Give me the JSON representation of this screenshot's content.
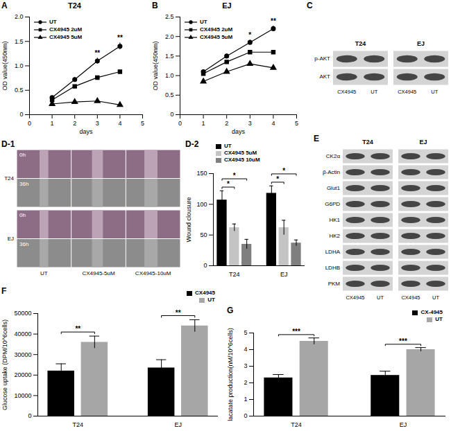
{
  "chart_data": [
    {
      "panel_label": "A",
      "type": "line",
      "title": "T24",
      "x_label": "days",
      "y_label": "OD value(450nm)",
      "xlim": [
        0,
        5
      ],
      "xticks": [
        0,
        1,
        2,
        3,
        4,
        5
      ],
      "ylim": [
        0,
        2
      ],
      "yticks": [
        0,
        0.5,
        {
          "value": 1,
          "label": "1.0"
        },
        1.5,
        {
          "value": 2,
          "label": "2.0"
        }
      ],
      "legend": "top-left",
      "x": [
        1,
        2,
        3,
        4
      ],
      "series": [
        {
          "name": "UT",
          "color": "#000000",
          "marker": "circle",
          "values": [
            0.35,
            0.72,
            1.1,
            1.4
          ],
          "errors": [
            0.03,
            0.04,
            0.06,
            0.07
          ]
        },
        {
          "name": "CX4945 2uM",
          "color": "#000000",
          "marker": "square",
          "values": [
            0.3,
            0.58,
            0.76,
            0.88
          ],
          "errors": [
            0.03,
            0.03,
            0.03,
            0.03
          ]
        },
        {
          "name": "CX4945 5uM",
          "color": "#000000",
          "marker": "triangle",
          "values": [
            0.22,
            0.26,
            0.28,
            0.2
          ],
          "errors": [
            0.02,
            0.02,
            0.02,
            0.02
          ]
        }
      ],
      "annotations": [
        {
          "x": 3,
          "text": "**"
        },
        {
          "x": 4,
          "text": "**"
        }
      ]
    },
    {
      "panel_label": "B",
      "type": "line",
      "title": "EJ",
      "x_label": "days",
      "y_label": "OD value(450nm)",
      "xlim": [
        0,
        5
      ],
      "xticks": [
        0,
        1,
        2,
        3,
        4,
        5
      ],
      "ylim": [
        0,
        2.5
      ],
      "yticks": [
        0,
        0.5,
        {
          "value": 1,
          "label": "1.0"
        },
        1.5,
        {
          "value": 2,
          "label": "2.0"
        },
        2.5
      ],
      "legend": "top-left",
      "x": [
        1,
        2,
        3,
        4
      ],
      "series": [
        {
          "name": "UT",
          "color": "#000000",
          "marker": "circle",
          "values": [
            1.1,
            1.5,
            1.85,
            2.2
          ],
          "errors": [
            0.04,
            0.05,
            0.06,
            0.07
          ]
        },
        {
          "name": "CX4945 2uM",
          "color": "#000000",
          "marker": "square",
          "values": [
            1.05,
            1.35,
            1.6,
            1.6
          ],
          "errors": [
            0.03,
            0.03,
            0.03,
            0.03
          ]
        },
        {
          "name": "CX4945 5uM",
          "color": "#000000",
          "marker": "triangle",
          "values": [
            0.85,
            1.1,
            1.3,
            1.2
          ],
          "errors": [
            0.03,
            0.03,
            0.03,
            0.03
          ]
        }
      ],
      "annotations": [
        {
          "x": 3,
          "text": "*"
        },
        {
          "x": 4,
          "text": "**"
        }
      ]
    },
    {
      "panel_label": "D-2",
      "type": "bar",
      "y_label": "Wound clousure",
      "categories": [
        "T24",
        "EJ"
      ],
      "ylim": [
        0,
        150
      ],
      "yticks": [
        0,
        50,
        100,
        150
      ],
      "legend": "top-left",
      "series": [
        {
          "name": "UT",
          "color": "#000000",
          "values": [
            107,
            118
          ],
          "errors": [
            15,
            12
          ]
        },
        {
          "name": "CX4945 5uM",
          "color": "#c4c4c4",
          "values": [
            62,
            62
          ],
          "errors": [
            6,
            12
          ]
        },
        {
          "name": "CX4945 10uM",
          "color": "#7f7f7f",
          "values": [
            35,
            37
          ],
          "errors": [
            8,
            5
          ]
        }
      ],
      "annotations": [
        {
          "category": "T24",
          "from": "UT",
          "to": "CX4945 5uM",
          "text": "*"
        },
        {
          "category": "T24",
          "from": "UT",
          "to": "CX4945 10uM",
          "text": "*"
        },
        {
          "category": "EJ",
          "from": "UT",
          "to": "CX4945 5uM",
          "text": "*"
        },
        {
          "category": "EJ",
          "from": "UT",
          "to": "CX4945 10uM",
          "text": "*"
        }
      ]
    },
    {
      "panel_label": "F",
      "type": "bar",
      "y_label": "Glucose uptake (DPM/10^6cells)",
      "categories": [
        "T24",
        "EJ"
      ],
      "ylim": [
        0,
        50000
      ],
      "yticks": [
        0,
        10000,
        20000,
        30000,
        40000,
        50000
      ],
      "legend": "top-right",
      "series": [
        {
          "name": "CX4945",
          "color": "#000000",
          "values": [
            22000,
            23500
          ],
          "errors": [
            3500,
            4000
          ]
        },
        {
          "name": "UT",
          "color": "#a6a6a6",
          "values": [
            36000,
            44000
          ],
          "errors": [
            3000,
            3000
          ]
        }
      ],
      "annotations": [
        {
          "category": "T24",
          "from": "CX4945",
          "to": "UT",
          "text": "**"
        },
        {
          "category": "EJ",
          "from": "CX4945",
          "to": "UT",
          "text": "**"
        }
      ]
    },
    {
      "panel_label": "G",
      "type": "bar",
      "y_label": "lacatate production(nM/10^6cells)",
      "categories": [
        "T24",
        "EJ"
      ],
      "ylim": [
        0,
        5
      ],
      "yticks": [
        0,
        1,
        2,
        3,
        4,
        5
      ],
      "legend": "top-right",
      "series": [
        {
          "name": "CX-4945",
          "color": "#000000",
          "values": [
            2.3,
            2.45
          ],
          "errors": [
            0.2,
            0.25
          ]
        },
        {
          "name": "UT",
          "color": "#a6a6a6",
          "values": [
            4.5,
            4.0
          ],
          "errors": [
            0.2,
            0.12
          ]
        }
      ],
      "annotations": [
        {
          "category": "T24",
          "from": "CX-4945",
          "to": "UT",
          "text": "***"
        },
        {
          "category": "EJ",
          "from": "CX-4945",
          "to": "UT",
          "text": "***"
        }
      ]
    }
  ],
  "blots": [
    {
      "panel_label": "C",
      "row_labels": [
        "p-AKT",
        "AKT"
      ],
      "groups": [
        {
          "title": "T24",
          "lanes": [
            "CX4945",
            "UT"
          ]
        },
        {
          "title": "EJ",
          "lanes": [
            "CX4945",
            "UT"
          ]
        }
      ]
    },
    {
      "panel_label": "E",
      "row_labels": [
        "CK2α",
        "β-Actin",
        "Glut1",
        "G6PD",
        "HK1",
        "HK2",
        "LDHA",
        "LDHB",
        "PKM"
      ],
      "groups": [
        {
          "title": "T24",
          "lanes": [
            "CX4945",
            "UT"
          ]
        },
        {
          "title": "EJ",
          "lanes": [
            "CX4945",
            "UT"
          ]
        }
      ]
    }
  ],
  "wound_images": {
    "panel_label": "D-1",
    "columns": [
      "UT",
      "CX4945-5uM",
      "CX4945-10uM"
    ],
    "rows": [
      {
        "label": "T24",
        "times": [
          "0h",
          "36h"
        ]
      },
      {
        "label": "EJ",
        "times": [
          "0h",
          "36h"
        ]
      }
    ]
  }
}
